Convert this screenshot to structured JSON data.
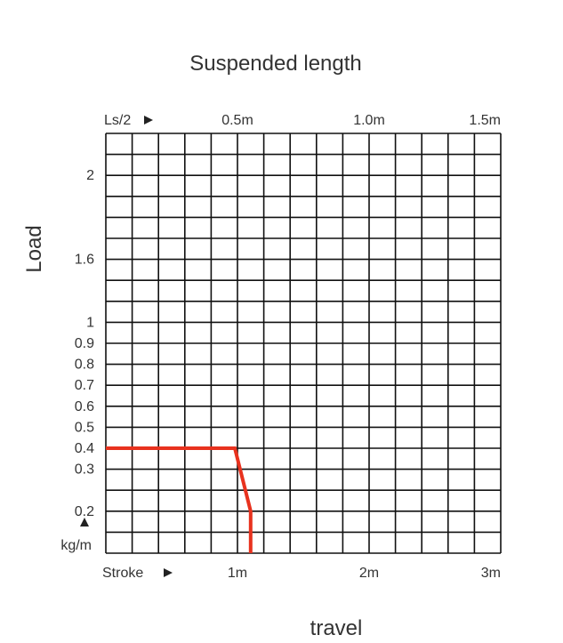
{
  "chart_data": {
    "type": "line",
    "title": "Suspended length",
    "xlabel": "travel",
    "ylabel": "Load",
    "top_axis": {
      "label": "Ls/2",
      "ticks": [
        {
          "value": 0.5,
          "label": "0.5m"
        },
        {
          "value": 1.0,
          "label": "1.0m"
        },
        {
          "value": 1.5,
          "label": "1.5m"
        }
      ],
      "range": [
        0,
        1.5
      ]
    },
    "bottom_axis": {
      "label": "Stroke",
      "ticks": [
        {
          "value": 1,
          "label": "1m"
        },
        {
          "value": 2,
          "label": "2m"
        },
        {
          "value": 3,
          "label": "3m"
        }
      ],
      "range": [
        0,
        3
      ]
    },
    "y_axis": {
      "unit_label": "kg/m",
      "ticks": [
        {
          "label": "2",
          "row": 2
        },
        {
          "label": "1.6",
          "row": 6
        },
        {
          "label": "1",
          "row": 9
        },
        {
          "label": "0.9",
          "row": 10
        },
        {
          "label": "0.8",
          "row": 11
        },
        {
          "label": "0.7",
          "row": 12
        },
        {
          "label": "0.6",
          "row": 13
        },
        {
          "label": "0.5",
          "row": 14
        },
        {
          "label": "0.4",
          "row": 15
        },
        {
          "label": "0.3",
          "row": 16
        },
        {
          "label": "0.2",
          "row": 18
        }
      ]
    },
    "grid": true,
    "grid_columns": 15,
    "grid_rows": 20,
    "series": [
      {
        "color": "#e8321e",
        "points": [
          {
            "stroke": 0,
            "load": 0.4
          },
          {
            "stroke": 0.98,
            "load": 0.4
          },
          {
            "stroke": 1.1,
            "load": 0.2
          },
          {
            "stroke": 1.1,
            "load": 0
          }
        ]
      }
    ]
  }
}
